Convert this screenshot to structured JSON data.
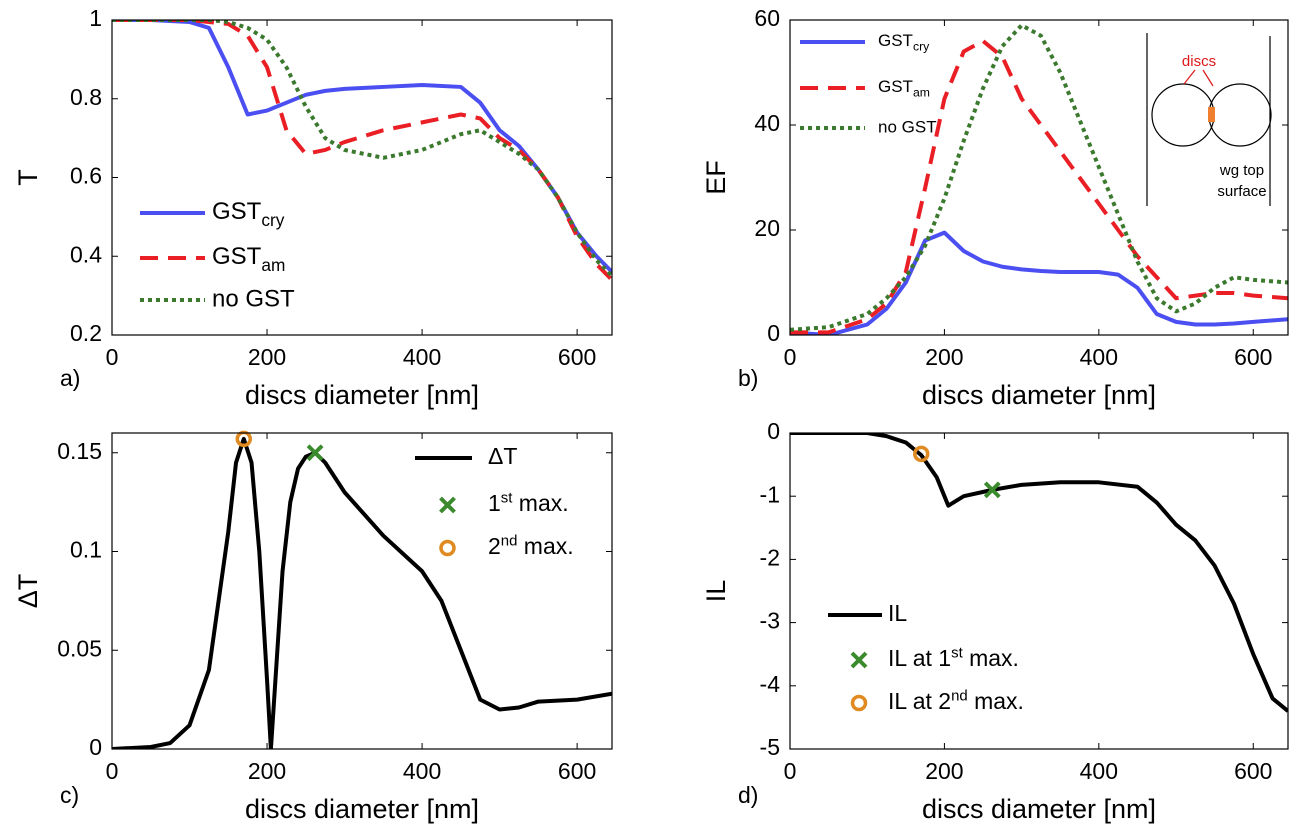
{
  "chart_data": [
    {
      "type": "line",
      "panel_label": "a)",
      "xlabel": "discs diameter [nm]",
      "ylabel": "T",
      "x": [
        0,
        50,
        100,
        125,
        150,
        175,
        200,
        225,
        250,
        275,
        300,
        350,
        400,
        450,
        475,
        500,
        525,
        550,
        575,
        600,
        625,
        645
      ],
      "xlim": [
        0,
        645
      ],
      "xticks": [
        0,
        200,
        400,
        600
      ],
      "ylim": [
        0.2,
        1
      ],
      "yticks": [
        0.2,
        0.4,
        0.6,
        0.8,
        1
      ],
      "series": [
        {
          "name": "GSTcry",
          "subscript": "cry",
          "color": "#4b4ff2",
          "dash": "solid",
          "values": [
            1,
            1,
            0.995,
            0.98,
            0.88,
            0.76,
            0.77,
            0.79,
            0.81,
            0.82,
            0.825,
            0.83,
            0.835,
            0.83,
            0.79,
            0.72,
            0.68,
            0.62,
            0.55,
            0.46,
            0.4,
            0.36
          ]
        },
        {
          "name": "GSTam",
          "subscript": "am",
          "color": "#ea1f25",
          "dash": "dashed",
          "values": [
            1,
            1,
            1,
            0.995,
            0.99,
            0.96,
            0.88,
            0.72,
            0.66,
            0.67,
            0.69,
            0.72,
            0.74,
            0.76,
            0.75,
            0.7,
            0.67,
            0.62,
            0.55,
            0.45,
            0.38,
            0.34
          ]
        },
        {
          "name": "no GST",
          "color": "#3b7a2e",
          "dash": "dotted",
          "values": [
            1,
            1,
            1,
            1,
            0.995,
            0.98,
            0.95,
            0.88,
            0.78,
            0.7,
            0.67,
            0.65,
            0.67,
            0.71,
            0.72,
            0.69,
            0.66,
            0.62,
            0.55,
            0.46,
            0.39,
            0.35
          ]
        }
      ]
    },
    {
      "type": "line",
      "panel_label": "b)",
      "xlabel": "discs diameter [nm]",
      "ylabel": "EF",
      "x": [
        0,
        50,
        100,
        125,
        150,
        175,
        200,
        225,
        250,
        275,
        300,
        325,
        350,
        400,
        425,
        450,
        475,
        500,
        525,
        550,
        575,
        600,
        645
      ],
      "xlim": [
        0,
        645
      ],
      "xticks": [
        0,
        200,
        400,
        600
      ],
      "ylim": [
        0,
        60
      ],
      "yticks": [
        0,
        20,
        40,
        60
      ],
      "inset_labels": [
        "discs",
        "wg top",
        "surface"
      ],
      "series": [
        {
          "name": "GSTcry",
          "subscript": "cry",
          "color": "#4b4ff2",
          "dash": "solid",
          "values": [
            0.5,
            0,
            2,
            5,
            10,
            18,
            19.5,
            16,
            14,
            13,
            12.5,
            12.2,
            12,
            12,
            11.5,
            9,
            4,
            2.5,
            2,
            2,
            2.2,
            2.5,
            3
          ]
        },
        {
          "name": "GSTam",
          "subscript": "am",
          "color": "#ea1f25",
          "dash": "dashed",
          "values": [
            0.5,
            0.5,
            3,
            6,
            12,
            28,
            45,
            54,
            56,
            53,
            45,
            40,
            35,
            25,
            20,
            15,
            11,
            7,
            7.5,
            8,
            8,
            7.5,
            7
          ]
        },
        {
          "name": "no GST",
          "color": "#3b7a2e",
          "dash": "dotted",
          "values": [
            1,
            1.5,
            4,
            7,
            11,
            17,
            26,
            37,
            47,
            55,
            59,
            57,
            50,
            32,
            23,
            14,
            7,
            4.5,
            6,
            9,
            11,
            10.5,
            10
          ]
        }
      ]
    },
    {
      "type": "line",
      "panel_label": "c)",
      "xlabel": "discs diameter [nm]",
      "ylabel": "ΔT",
      "x": [
        0,
        50,
        75,
        100,
        125,
        150,
        160,
        170,
        180,
        190,
        200,
        205,
        210,
        220,
        230,
        240,
        250,
        262,
        275,
        300,
        350,
        400,
        425,
        450,
        475,
        500,
        525,
        550,
        600,
        645
      ],
      "xlim": [
        0,
        645
      ],
      "xticks": [
        0,
        200,
        400,
        600
      ],
      "ylim": [
        0,
        0.16
      ],
      "yticks": [
        0,
        0.05,
        0.1,
        0.15
      ],
      "series": [
        {
          "name": "ΔT",
          "color": "#000000",
          "dash": "solid",
          "values": [
            0,
            0.001,
            0.003,
            0.012,
            0.04,
            0.11,
            0.145,
            0.157,
            0.145,
            0.1,
            0.035,
            0,
            0.03,
            0.09,
            0.125,
            0.142,
            0.148,
            0.15,
            0.145,
            0.13,
            0.108,
            0.09,
            0.075,
            0.05,
            0.025,
            0.02,
            0.021,
            0.024,
            0.025,
            0.028
          ]
        },
        {
          "name": "1st max.",
          "superscript": "st",
          "color": "#3b8a2e",
          "marker": "x",
          "x": [
            262
          ],
          "values": [
            0.15
          ]
        },
        {
          "name": "2nd max.",
          "superscript": "nd",
          "color": "#e08a22",
          "marker": "o",
          "x": [
            170
          ],
          "values": [
            0.157
          ]
        }
      ]
    },
    {
      "type": "line",
      "panel_label": "d)",
      "xlabel": "discs diameter [nm]",
      "ylabel": "IL",
      "x": [
        0,
        100,
        125,
        150,
        170,
        190,
        205,
        225,
        262,
        300,
        350,
        400,
        450,
        475,
        500,
        525,
        550,
        575,
        600,
        625,
        645
      ],
      "xlim": [
        0,
        645
      ],
      "xticks": [
        0,
        200,
        400,
        600
      ],
      "ylim": [
        -5,
        0
      ],
      "yticks": [
        -5,
        -4,
        -3,
        -2,
        -1,
        0
      ],
      "series": [
        {
          "name": "IL",
          "color": "#000000",
          "dash": "solid",
          "values": [
            0,
            0,
            -0.05,
            -0.15,
            -0.35,
            -0.7,
            -1.15,
            -1.0,
            -0.9,
            -0.82,
            -0.78,
            -0.78,
            -0.85,
            -1.1,
            -1.45,
            -1.7,
            -2.1,
            -2.7,
            -3.5,
            -4.2,
            -4.4
          ]
        },
        {
          "name": "IL at 1st max.",
          "superscript": "st",
          "color": "#3b8a2e",
          "marker": "x",
          "x": [
            262
          ],
          "values": [
            -0.9
          ]
        },
        {
          "name": "IL at 2nd max.",
          "superscript": "nd",
          "color": "#e08a22",
          "marker": "o",
          "x": [
            170
          ],
          "values": [
            -0.33
          ]
        }
      ]
    }
  ]
}
